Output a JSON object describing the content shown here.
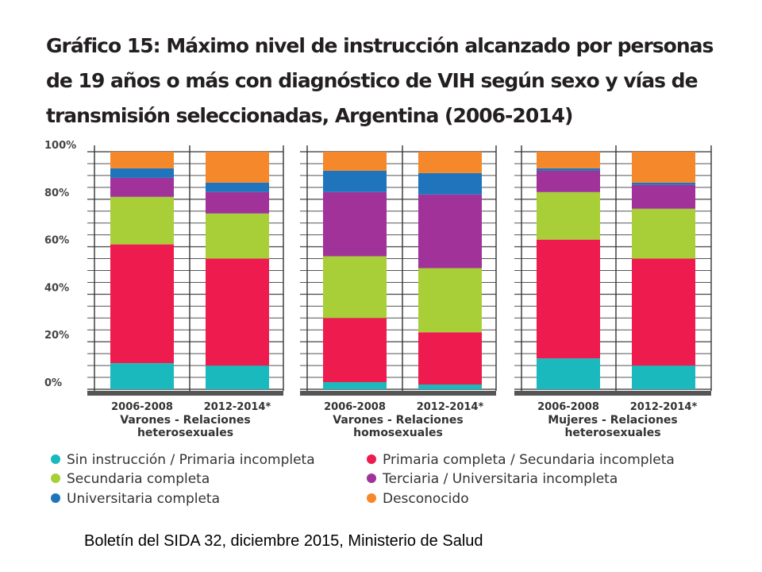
{
  "chart_data": {
    "type": "bar",
    "stacked": true,
    "title": "Gráfico 15: Máximo nivel de instrucción alcanzado por personas de 19 años o más con diagnóstico de VIH según sexo y vías de transmisión seleccionadas, Argentina (2006-2014)",
    "ylim": [
      0,
      100
    ],
    "yticks": [
      "0%",
      "20%",
      "40%",
      "60%",
      "80%",
      "100%"
    ],
    "grid": true,
    "legend_position": "bottom",
    "groups": [
      {
        "label_lines": [
          "Varones - Relaciones",
          "heterosexuales"
        ],
        "categories": [
          "2006-2008",
          "2012-2014*"
        ],
        "series_values": [
          [
            11,
            10
          ],
          [
            50,
            45
          ],
          [
            20,
            19
          ],
          [
            8,
            9
          ],
          [
            4,
            4
          ],
          [
            7,
            13
          ]
        ]
      },
      {
        "label_lines": [
          "Varones - Relaciones",
          "homosexuales"
        ],
        "categories": [
          "2006-2008",
          "2012-2014*"
        ],
        "series_values": [
          [
            3,
            2
          ],
          [
            27,
            22
          ],
          [
            26,
            27
          ],
          [
            27,
            31
          ],
          [
            9,
            9
          ],
          [
            8,
            9
          ]
        ]
      },
      {
        "label_lines": [
          "Mujeres - Relaciones",
          "heterosexuales"
        ],
        "categories": [
          "2006-2008",
          "2012-2014*"
        ],
        "series_values": [
          [
            13,
            10
          ],
          [
            50,
            45
          ],
          [
            20,
            21
          ],
          [
            9,
            10
          ],
          [
            1,
            1
          ],
          [
            7,
            13
          ]
        ]
      }
    ],
    "series": [
      {
        "name": "Sin instrucción / Primaria incompleta",
        "color": "#1ab9bd"
      },
      {
        "name": "Primaria completa / Secundaria incompleta",
        "color": "#ee1b4f"
      },
      {
        "name": "Secundaria completa",
        "color": "#a8cf38"
      },
      {
        "name": "Terciaria / Universitaria incompleta",
        "color": "#a0329a"
      },
      {
        "name": "Universitaria completa",
        "color": "#1f74bb"
      },
      {
        "name": "Desconocido",
        "color": "#f5882a"
      }
    ]
  },
  "source_note": "Boletín del SIDA 32, diciembre 2015, Ministerio de Salud"
}
